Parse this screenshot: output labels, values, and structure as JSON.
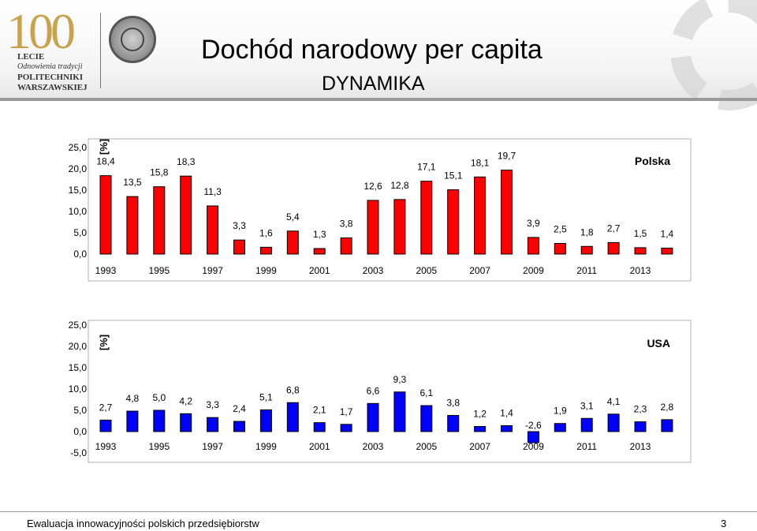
{
  "header": {
    "title": "Dochód narodowy per capita",
    "subtitle": "DYNAMIKA",
    "logo_number": "100",
    "logo_lines": [
      "LECIE",
      "Odnowienia tradycji",
      "POLITECHNIKI",
      "WARSZAWSKIEJ"
    ]
  },
  "footer": {
    "text": "Ewaluacja innowacyjności polskich przedsiębiorstw",
    "page": "3"
  },
  "chart_data": [
    {
      "type": "bar",
      "title": "Polska",
      "ylabel": "[%]",
      "color": "#ff0000",
      "ylim": [
        0,
        25
      ],
      "yticks": [
        "0,0",
        "5,0",
        "10,0",
        "15,0",
        "20,0",
        "25,0"
      ],
      "tick_labels": [
        "1993",
        "1995",
        "1997",
        "1999",
        "2001",
        "2003",
        "2005",
        "2007",
        "2009",
        "2011",
        "2013"
      ],
      "values": [
        18.4,
        13.5,
        15.8,
        18.3,
        11.3,
        3.3,
        1.6,
        5.4,
        1.3,
        3.8,
        12.6,
        12.8,
        17.1,
        15.1,
        18.1,
        19.7,
        3.9,
        2.5,
        1.8,
        2.7,
        1.5,
        1.4
      ],
      "value_labels": [
        "18,4",
        "13,5",
        "15,8",
        "18,3",
        "11,3",
        "3,3",
        "1,6",
        "5,4",
        "1,3",
        "3,8",
        "12,6",
        "12,8",
        "17,1",
        "15,1",
        "18,1",
        "19,7",
        "3,9",
        "2,5",
        "1,8",
        "2,7",
        "1,5",
        "1,4"
      ]
    },
    {
      "type": "bar",
      "title": "USA",
      "ylabel": "[%]",
      "color": "#0000ff",
      "ylim": [
        -5,
        25
      ],
      "yticks": [
        "-5,0",
        "0,0",
        "5,0",
        "10,0",
        "15,0",
        "20,0",
        "25,0"
      ],
      "tick_labels": [
        "1993",
        "1995",
        "1997",
        "1999",
        "2001",
        "2003",
        "2005",
        "2007",
        "2009",
        "2011",
        "2013"
      ],
      "values": [
        2.7,
        4.8,
        5.0,
        4.2,
        3.3,
        2.4,
        5.1,
        6.8,
        2.1,
        1.7,
        6.6,
        9.3,
        6.1,
        3.8,
        1.2,
        1.4,
        -2.6,
        1.9,
        3.1,
        4.1,
        2.3,
        2.8
      ],
      "value_labels": [
        "2,7",
        "4,8",
        "5,0",
        "4,2",
        "3,3",
        "2,4",
        "5,1",
        "6,8",
        "2,1",
        "1,7",
        "6,6",
        "9,3",
        "6,1",
        "3,8",
        "1,2",
        "1,4",
        "-2,6",
        "1,9",
        "3,1",
        "4,1",
        "2,3",
        "2,8"
      ]
    }
  ]
}
